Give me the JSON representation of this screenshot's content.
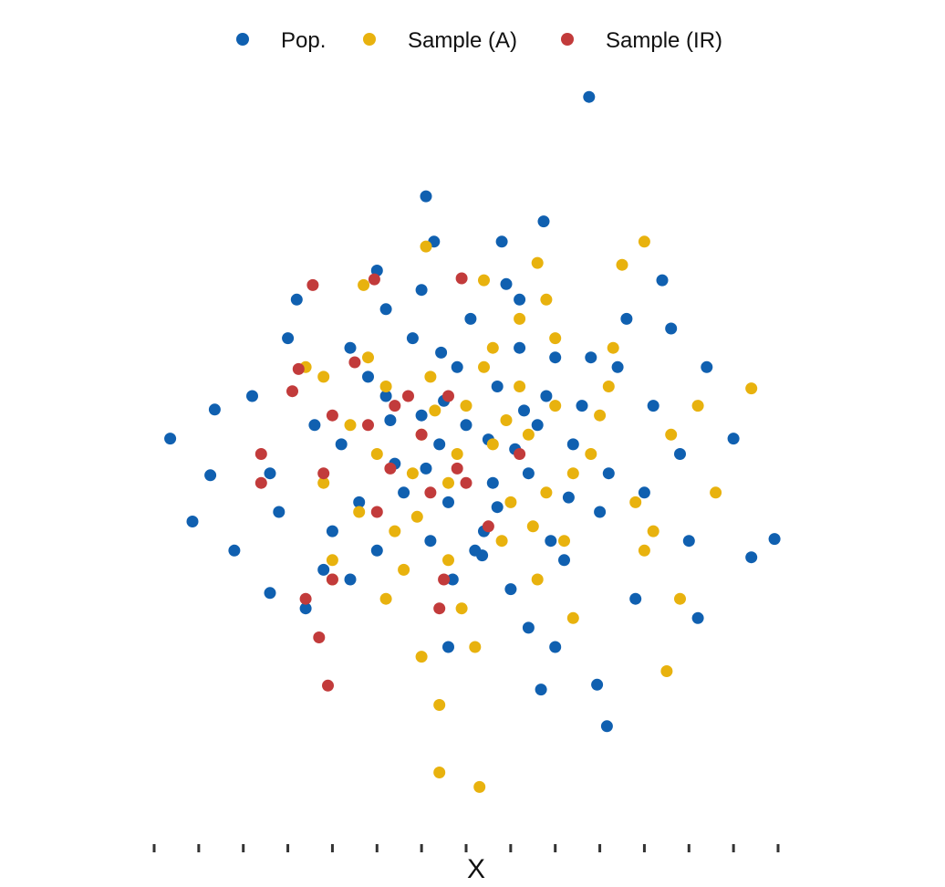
{
  "chart_data": {
    "type": "scatter",
    "title": "",
    "xlabel": "X",
    "ylabel": "",
    "xlim": [
      -3.5,
      3.5
    ],
    "ylim": [
      -3.9,
      3.9
    ],
    "xticks": [
      -3.5,
      -3,
      -2.5,
      -2,
      -1.5,
      -1,
      -0.5,
      0,
      0.5,
      1,
      1.5,
      2,
      2.5,
      3,
      3.5
    ],
    "xtick_labels": [],
    "grid": false,
    "legend": {
      "position": "top-center",
      "entries": [
        {
          "label": "Pop.",
          "color": "#1060b0"
        },
        {
          "label": "Sample (A)",
          "color": "#e8b20e"
        },
        {
          "label": "Sample (IR)",
          "color": "#c23b3b"
        }
      ]
    },
    "series": [
      {
        "name": "Pop.",
        "color": "#1060b0",
        "points": [
          [
            1.38,
            3.7
          ],
          [
            -0.45,
            2.67
          ],
          [
            0.87,
            2.41
          ],
          [
            -0.36,
            2.2
          ],
          [
            -3.32,
            0.16
          ],
          [
            -2.87,
            -0.22
          ],
          [
            -3.07,
            -0.7
          ],
          [
            -2.82,
            0.46
          ],
          [
            3.0,
            0.16
          ],
          [
            3.46,
            -0.88
          ],
          [
            3.2,
            -1.07
          ],
          [
            -2.2,
            -1.44
          ],
          [
            1.58,
            -2.82
          ],
          [
            1.47,
            -2.39
          ],
          [
            0.84,
            -2.44
          ],
          [
            0.18,
            -1.05
          ],
          [
            -1.0,
            -1.0
          ],
          [
            -0.28,
            1.05
          ],
          [
            1.0,
            1.0
          ],
          [
            2.6,
            -1.7
          ],
          [
            2.3,
            1.3
          ],
          [
            -2.0,
            1.2
          ],
          [
            -1.7,
            0.3
          ],
          [
            0.45,
            1.76
          ],
          [
            0.6,
            1.6
          ],
          [
            -0.9,
            1.5
          ],
          [
            2.1,
            0.5
          ],
          [
            -1.3,
            -1.3
          ],
          [
            0.1,
            -1.0
          ],
          [
            1.2,
            0.1
          ],
          [
            -0.5,
            0.4
          ],
          [
            0.35,
            0.7
          ],
          [
            -0.2,
            -0.5
          ],
          [
            0.7,
            -0.2
          ],
          [
            -0.8,
            -0.1
          ],
          [
            0.25,
            0.15
          ],
          [
            -0.1,
            0.9
          ],
          [
            1.5,
            -0.6
          ],
          [
            -1.5,
            -0.8
          ],
          [
            0.9,
            0.6
          ],
          [
            -0.4,
            -0.9
          ],
          [
            1.7,
            0.9
          ],
          [
            -1.1,
            0.8
          ],
          [
            0.5,
            -1.4
          ],
          [
            -0.6,
            1.2
          ],
          [
            2.0,
            -0.4
          ],
          [
            -2.2,
            -0.2
          ],
          [
            1.1,
            -1.1
          ],
          [
            -1.4,
            0.1
          ],
          [
            0.0,
            0.3
          ],
          [
            0.3,
            -0.3
          ],
          [
            -0.3,
            0.1
          ],
          [
            0.8,
            0.3
          ],
          [
            -0.7,
            -0.4
          ],
          [
            1.3,
            0.5
          ],
          [
            -1.2,
            -0.5
          ],
          [
            0.6,
            1.1
          ],
          [
            -0.9,
            0.6
          ],
          [
            0.2,
            -0.8
          ],
          [
            1.6,
            -0.2
          ],
          [
            2.4,
            0.0
          ],
          [
            -2.4,
            0.6
          ],
          [
            2.7,
            0.9
          ],
          [
            -2.6,
            -1.0
          ],
          [
            1.9,
            -1.5
          ],
          [
            -1.9,
            1.6
          ],
          [
            0.4,
            2.2
          ],
          [
            -0.2,
            -2.0
          ],
          [
            1.0,
            -2.0
          ],
          [
            -1.0,
            1.9
          ],
          [
            2.2,
            1.8
          ],
          [
            -1.8,
            -1.6
          ],
          [
            0.7,
            -1.8
          ],
          [
            -0.5,
            1.7
          ],
          [
            1.8,
            1.4
          ],
          [
            -1.6,
            -1.2
          ],
          [
            0.05,
            1.4
          ],
          [
            0.95,
            -0.9
          ],
          [
            -0.15,
            -1.3
          ],
          [
            1.4,
            1.0
          ],
          [
            -1.3,
            1.1
          ],
          [
            2.5,
            -0.9
          ],
          [
            -2.1,
            -0.6
          ],
          [
            0.55,
            0.05
          ],
          [
            -0.25,
            0.55
          ],
          [
            1.15,
            -0.45
          ],
          [
            -0.85,
            0.35
          ],
          [
            0.35,
            -0.55
          ],
          [
            0.65,
            0.45
          ],
          [
            -0.45,
            -0.15
          ]
        ]
      },
      {
        "name": "Sample (A)",
        "color": "#e8b20e",
        "points": [
          [
            -0.45,
            2.15
          ],
          [
            2.0,
            2.2
          ],
          [
            1.75,
            1.96
          ],
          [
            0.8,
            1.98
          ],
          [
            3.2,
            0.68
          ],
          [
            -1.15,
            1.75
          ],
          [
            -1.1,
            1.0
          ],
          [
            1.0,
            1.2
          ],
          [
            0.6,
            1.4
          ],
          [
            -0.9,
            0.7
          ],
          [
            0.2,
            0.9
          ],
          [
            1.5,
            0.4
          ],
          [
            -0.5,
            0.2
          ],
          [
            0.3,
            0.1
          ],
          [
            -0.2,
            -0.3
          ],
          [
            0.9,
            -0.4
          ],
          [
            -1.2,
            -0.6
          ],
          [
            0.4,
            -0.9
          ],
          [
            1.2,
            -0.2
          ],
          [
            -0.8,
            -0.8
          ],
          [
            2.3,
            0.2
          ],
          [
            -1.6,
            0.8
          ],
          [
            2.1,
            -0.8
          ],
          [
            -1.5,
            -1.3
          ],
          [
            0.1,
            -2.0
          ],
          [
            -0.5,
            -2.1
          ],
          [
            2.4,
            -1.5
          ],
          [
            -1.5,
            -1.1
          ],
          [
            -0.3,
            -3.3
          ],
          [
            0.15,
            -3.45
          ],
          [
            2.25,
            -2.25
          ],
          [
            -0.3,
            -2.6
          ],
          [
            1.0,
            0.5
          ],
          [
            0.0,
            0.5
          ],
          [
            -0.6,
            -0.2
          ],
          [
            0.7,
            0.2
          ],
          [
            1.6,
            0.7
          ],
          [
            -1.0,
            0.0
          ],
          [
            0.5,
            -0.5
          ],
          [
            -0.1,
            0.0
          ],
          [
            1.1,
            -0.9
          ],
          [
            -0.4,
            0.8
          ],
          [
            0.8,
            -1.3
          ],
          [
            -1.3,
            0.3
          ],
          [
            1.9,
            -0.5
          ],
          [
            0.3,
            1.1
          ],
          [
            -0.7,
            -1.2
          ],
          [
            1.4,
            0.0
          ],
          [
            0.6,
            0.7
          ],
          [
            -0.2,
            -1.1
          ],
          [
            2.6,
            0.5
          ],
          [
            2.8,
            -0.4
          ],
          [
            -1.8,
            0.9
          ],
          [
            -1.6,
            -0.3
          ],
          [
            0.9,
            1.6
          ],
          [
            0.2,
            1.8
          ],
          [
            -0.05,
            -1.6
          ],
          [
            1.2,
            -1.7
          ],
          [
            -0.9,
            -1.5
          ],
          [
            1.65,
            1.1
          ],
          [
            2.0,
            -1.0
          ],
          [
            0.45,
            0.35
          ],
          [
            -0.35,
            0.45
          ],
          [
            0.75,
            -0.75
          ],
          [
            -0.55,
            -0.65
          ]
        ]
      },
      {
        "name": "Sample (IR)",
        "color": "#c23b3b",
        "points": [
          [
            -1.72,
            1.75
          ],
          [
            -1.03,
            1.81
          ],
          [
            -0.05,
            1.82
          ],
          [
            -1.88,
            0.88
          ],
          [
            -1.95,
            0.65
          ],
          [
            -2.3,
            0.0
          ],
          [
            -2.3,
            -0.3
          ],
          [
            -1.6,
            -0.2
          ],
          [
            -1.5,
            0.4
          ],
          [
            -1.1,
            0.3
          ],
          [
            -0.8,
            0.5
          ],
          [
            -0.5,
            0.2
          ],
          [
            -0.2,
            0.6
          ],
          [
            0.0,
            -0.3
          ],
          [
            -0.4,
            -0.4
          ],
          [
            -1.0,
            -0.6
          ],
          [
            -1.5,
            -1.3
          ],
          [
            -1.8,
            -1.5
          ],
          [
            -1.65,
            -1.9
          ],
          [
            -1.55,
            -2.4
          ],
          [
            -0.3,
            -1.6
          ],
          [
            -0.25,
            -1.3
          ],
          [
            0.6,
            0.0
          ],
          [
            -0.65,
            0.6
          ],
          [
            -0.85,
            -0.15
          ],
          [
            -1.25,
            0.95
          ],
          [
            0.25,
            -0.75
          ],
          [
            -0.1,
            -0.15
          ]
        ]
      }
    ]
  }
}
